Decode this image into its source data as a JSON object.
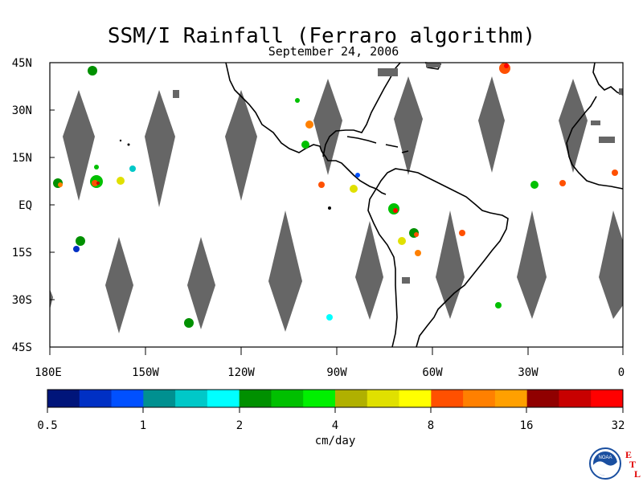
{
  "title": "SSM/I Rainfall (Ferraro algorithm)",
  "subtitle": "September 24, 2006",
  "latitude_labels": [
    "45N",
    "30N",
    "15N",
    "EQ",
    "15S",
    "30S",
    "45S"
  ],
  "longitude_labels": [
    "180E",
    "150W",
    "120W",
    "90W",
    "60W",
    "30W",
    "0"
  ],
  "colorbar": {
    "units": "cm/day",
    "tick_labels": [
      "0.5",
      "1",
      "2",
      "4",
      "8",
      "16",
      "32"
    ],
    "colors": [
      "#00157a",
      "#0030c4",
      "#0050ff",
      "#009090",
      "#00c8c8",
      "#00ffff",
      "#009000",
      "#00c000",
      "#00f000",
      "#b0b000",
      "#e0e000",
      "#ffff00",
      "#ff5000",
      "#ff8000",
      "#ffa000",
      "#900000",
      "#c80000",
      "#ff0000"
    ]
  },
  "colors": {
    "no_data": "#666666",
    "coastline": "#000000"
  },
  "logo": {
    "name": "NOAA",
    "letters": [
      "E",
      "T",
      "L"
    ]
  }
}
